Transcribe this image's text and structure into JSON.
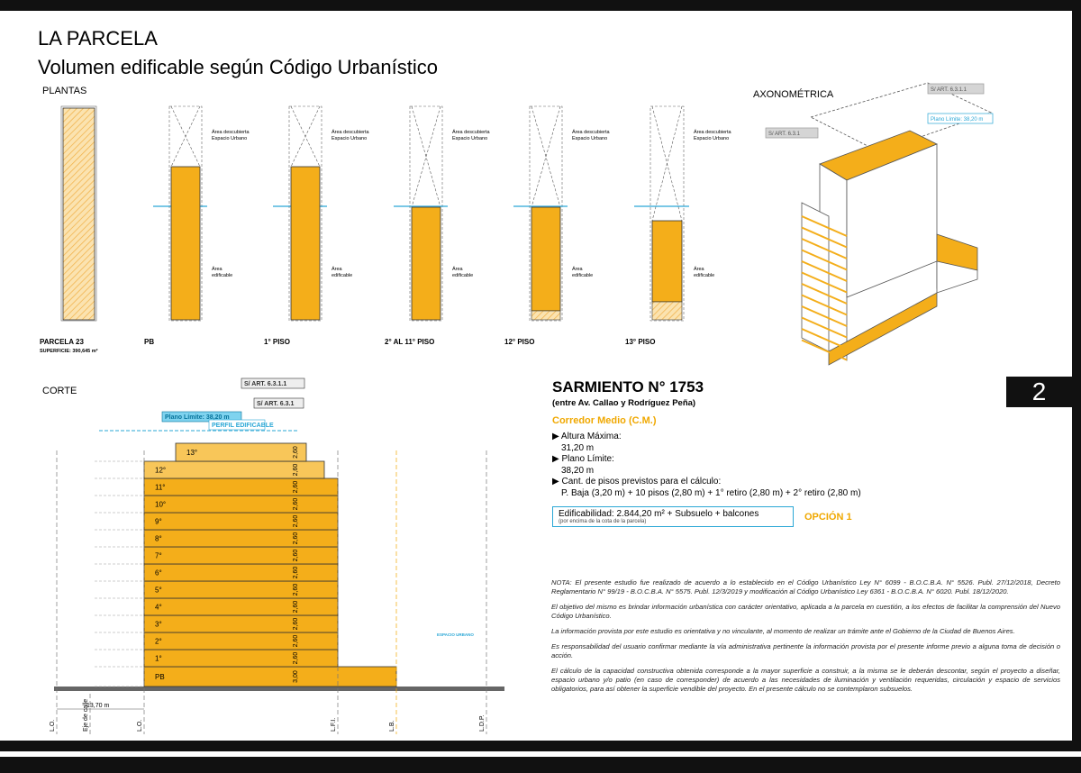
{
  "header": {
    "title": "LA PARCELA",
    "subtitle": "Volumen edificable según Código Urbanístico"
  },
  "plantas": {
    "label": "PLANTAS",
    "panels": [
      {
        "title": "PARCELA 23",
        "subtitle": "SUPERFICIE: 390,645 m²"
      },
      {
        "title": "PB",
        "top_label": [
          "Área descubierta",
          "Espacio Urbano"
        ],
        "area_label": [
          "Área",
          "edificable"
        ]
      },
      {
        "title": "1° PISO",
        "top_label": [
          "Área descubierta",
          "Espacio Urbano"
        ],
        "area_label": [
          "Área",
          "edificable"
        ]
      },
      {
        "title": "2° AL 11° PISO",
        "top_label": [
          "Área descubierta",
          "Espacio Urbano"
        ],
        "area_label": [
          "Área",
          "edificable"
        ]
      },
      {
        "title": "12° PISO",
        "top_label": [
          "Área descubierta",
          "Espacio Urbano"
        ],
        "area_label": [
          "Área",
          "edificable"
        ]
      },
      {
        "title": "13° PISO",
        "top_label": [
          "Área descubierta",
          "Espacio Urbano"
        ],
        "area_label": [
          "Área",
          "edificable"
        ]
      }
    ]
  },
  "axonometrica": {
    "label": "AXONOMÉTRICA",
    "tags": [
      "S/ ART. 6.3.1.1",
      "S/ ART. 6.3.1",
      "Plano Límite: 38,20 m"
    ]
  },
  "corte": {
    "label": "CORTE",
    "tags": [
      "S/ ART. 6.3.1.1",
      "S/ ART. 6.3.1",
      "Plano Límite: 38,20 m",
      "PERFIL EDIFICABLE",
      "ESPACIO URBANO"
    ],
    "floors": [
      {
        "label": "PB",
        "height": "3,00"
      },
      {
        "label": "1°",
        "height": "2,60"
      },
      {
        "label": "2°",
        "height": "2,60"
      },
      {
        "label": "3°",
        "height": "2,60"
      },
      {
        "label": "4°",
        "height": "2,60"
      },
      {
        "label": "5°",
        "height": "2,60"
      },
      {
        "label": "6°",
        "height": "2,60"
      },
      {
        "label": "7°",
        "height": "2,60"
      },
      {
        "label": "8°",
        "height": "2,60"
      },
      {
        "label": "9°",
        "height": "2,60"
      },
      {
        "label": "10°",
        "height": "2,60"
      },
      {
        "label": "11°",
        "height": "2,60"
      },
      {
        "label": "12°",
        "height": "2,60"
      },
      {
        "label": "13°",
        "height": "2,60"
      }
    ],
    "width_label": "13,70 m",
    "lines": [
      "L.O.",
      "Eje de calle",
      "L.O.",
      "L.F.I.",
      "L.B.",
      "L.D.P."
    ]
  },
  "info": {
    "address": "SARMIENTO N° 1753",
    "between": "(entre Av. Callao y Rodríguez Peña)",
    "district": "Corredor Medio (C.M.)",
    "items": [
      {
        "label": "Altura Máxima:",
        "value": "31,20 m"
      },
      {
        "label": "Plano Límite:",
        "value": "38,20 m"
      },
      {
        "label": "Cant. de pisos previstos para el cálculo:",
        "value": "P. Baja (3,20 m) + 10 pisos (2,80 m) + 1° retiro (2,80 m) + 2° retiro (2,80 m)"
      }
    ],
    "edificabilidad": "Edificabilidad: 2.844,20 m² + Subsuelo + balcones",
    "edificabilidad_note": "(por encima de la cota de la parcela)",
    "option": "OPCIÓN 1"
  },
  "page_number": "2",
  "notes": [
    "NOTA: El presente estudio fue realizado de acuerdo a lo establecido en el Código Urbanístico Ley N° 6099 - B.O.C.B.A. N° 5526. Publ. 27/12/2018, Decreto Reglamentario N° 99/19 - B.O.C.B.A. N° 5575. Publ. 12/3/2019 y modificación al Código Urbanístico Ley 6361 - B.O.C.B.A. N° 6020. Publ. 18/12/2020.",
    "El objetivo del mismo es brindar información urbanística con carácter orientativo, aplicada a la parcela en cuestión, a los efectos de facilitar la comprensión del Nuevo Código Urbanístico.",
    "La información provista por este estudio es orientativa y no vinculante, al momento de realizar un trámite ante el Gobierno de la Ciudad de Buenos Aires.",
    "Es responsabilidad del usuario confirmar mediante la vía administrativa pertinente la información provista por el presente informe previo a alguna toma de decisión o acción.",
    "El cálculo de la capacidad constructiva obtenida corresponde a la mayor superficie a construir, a la misma se le deberán descontar, según el proyecto a diseñar, espacio urbano y/o patio (en caso de corresponder) de acuerdo a las necesidades de iluminación y ventilación requeridas, circulación y espacio de servicios obligatorios, para así obtener la superficie vendible del proyecto. En el presente cálculo no se contemplaron subsuelos."
  ]
}
